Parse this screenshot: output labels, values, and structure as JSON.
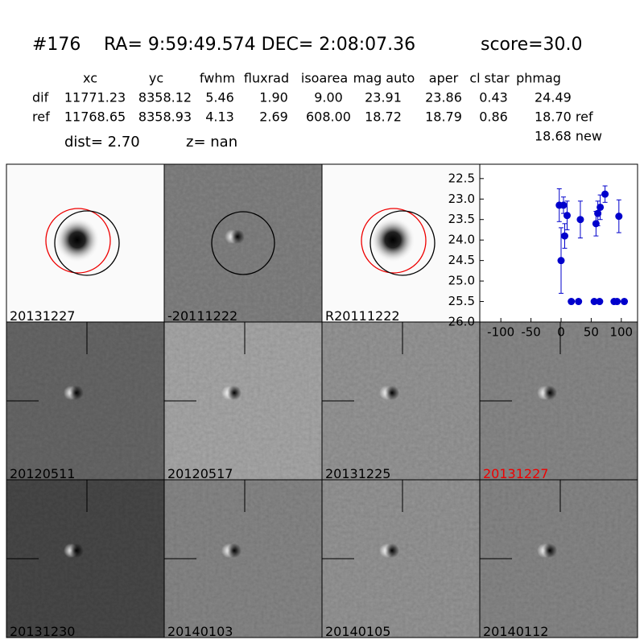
{
  "header": {
    "id": "#176",
    "coords": "RA= 9:59:49.574 DEC= 2:08:07.36",
    "score": "score=30.0"
  },
  "table": {
    "columns": [
      "xc",
      "yc",
      "fwhm",
      "fluxrad",
      "isoarea",
      "mag auto",
      "aper",
      "cl star",
      "phmag"
    ],
    "rows": [
      [
        "dif",
        "11771.23",
        "8358.12",
        "5.46",
        "1.90",
        "9.00",
        "23.91",
        "23.86",
        "0.43",
        "24.49"
      ],
      [
        "ref",
        "11768.65",
        "8358.93",
        "4.13",
        "2.69",
        "608.00",
        "18.72",
        "18.79",
        "0.86",
        "18.70 ref"
      ]
    ],
    "extra": "18.68 new",
    "dist": "dist=  2.70",
    "z": "z=   nan"
  },
  "panels": [
    {
      "label": "20131227"
    },
    {
      "label": "-20111222"
    },
    {
      "label": "R20111222"
    },
    {
      "label": "20120511"
    },
    {
      "label": "20120517"
    },
    {
      "label": "20131225"
    },
    {
      "label": "20131227"
    },
    {
      "label": "20131230"
    },
    {
      "label": "20140103"
    },
    {
      "label": "20140105"
    },
    {
      "label": "20140112"
    }
  ],
  "chart_data": {
    "type": "scatter",
    "xlim": [
      -135,
      127
    ],
    "xticks": [
      -100,
      -50,
      0,
      50,
      100
    ],
    "ylim": [
      26.0,
      22.15
    ],
    "yticks": [
      22.5,
      {
        "value": 23.0,
        "label": "23.0"
      },
      23.5,
      {
        "value": 24.0,
        "label": "24.0"
      },
      24.5,
      {
        "value": 25.0,
        "label": "25.0"
      },
      25.5,
      {
        "value": 26.0,
        "label": "26.0"
      }
    ],
    "inverted_y": true,
    "series": [
      {
        "color": "#0000cc",
        "x": [
          -3,
          0,
          4,
          6,
          10,
          17,
          29,
          32,
          55,
          58,
          61,
          64,
          65,
          73,
          88,
          93,
          96,
          105
        ],
        "values": [
          23.15,
          24.5,
          23.15,
          23.9,
          23.4,
          25.5,
          25.5,
          23.5,
          25.5,
          23.6,
          23.35,
          25.5,
          23.2,
          22.88,
          25.5,
          25.5,
          23.42,
          25.5
        ],
        "errors": [
          0.4,
          0.8,
          0.2,
          0.3,
          0.35,
          0.05,
          0.05,
          0.45,
          0.05,
          0.3,
          0.3,
          0.05,
          0.3,
          0.2,
          0.05,
          0.05,
          0.4,
          0.05
        ]
      }
    ]
  }
}
